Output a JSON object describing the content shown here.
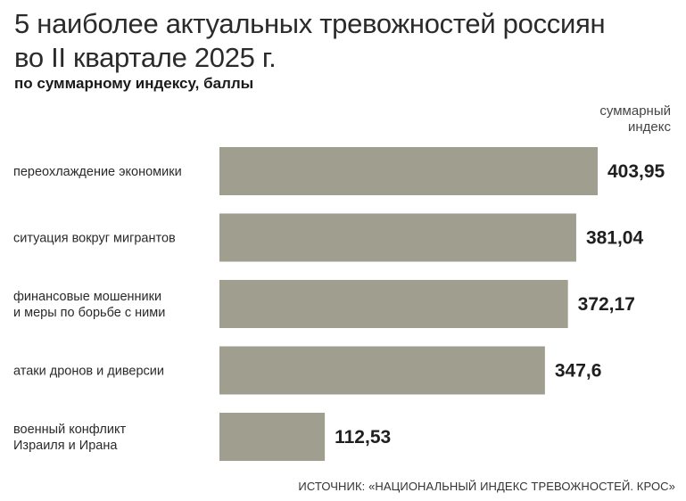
{
  "title": "5 наиболее актуальных тревожностей россиян\nво II квартале 2025 г.",
  "subtitle": "по суммарному индексу, баллы",
  "column_header": [
    "суммарный",
    "индекс"
  ],
  "source": "ИСТОЧНИК: «НАЦИОНАЛЬНЫЙ ИНДЕКС ТРЕВОЖНОСТЕЙ. КРОС»",
  "colors": {
    "bar": "#a09e8e",
    "text": "#1f1f1f"
  },
  "chart_data": {
    "type": "bar",
    "orientation": "horizontal",
    "categories": [
      [
        "переохлаждение экономики"
      ],
      [
        "ситуация вокруг мигрантов"
      ],
      [
        "финансовые мошенники",
        "и меры по борьбе с ними"
      ],
      [
        "атаки дронов и диверсии"
      ],
      [
        "военный конфликт",
        "Израиля и Ирана"
      ]
    ],
    "values": [
      403.95,
      381.04,
      372.17,
      347.6,
      112.53
    ],
    "value_labels": [
      "403,95",
      "381,04",
      "372,17",
      "347,6",
      "112,53"
    ],
    "xlim": [
      0,
      403.95
    ],
    "grid": false,
    "legend": "none"
  }
}
